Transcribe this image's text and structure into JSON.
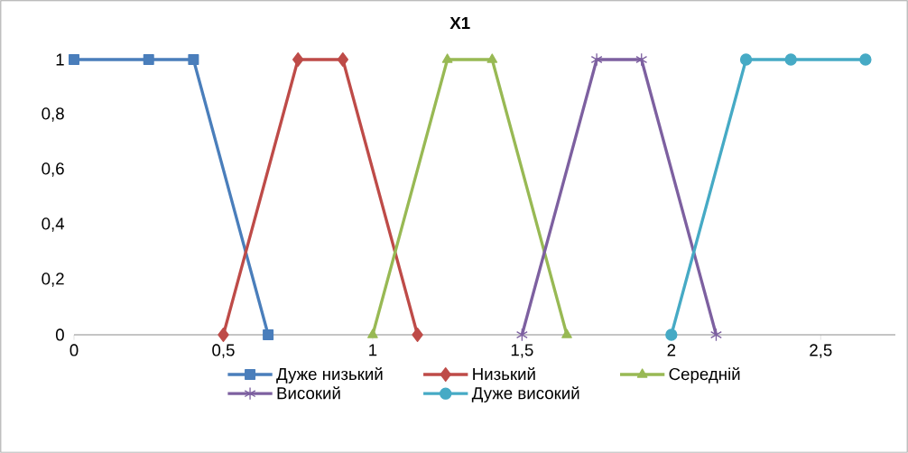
{
  "chart_data": {
    "type": "line",
    "title": "X1",
    "xlim": [
      0,
      2.75
    ],
    "ylim": [
      0,
      1
    ],
    "xticks": [
      0,
      {
        "value": 0.5,
        "label": "0,5"
      },
      1,
      {
        "value": 1.5,
        "label": "1,5"
      },
      2,
      {
        "value": 2.5,
        "label": "2,5"
      }
    ],
    "yticks": [
      0,
      {
        "value": 0.2,
        "label": "0,2"
      },
      {
        "value": 0.4,
        "label": "0,4"
      },
      {
        "value": 0.6,
        "label": "0,6"
      },
      {
        "value": 0.8,
        "label": "0,8"
      },
      1
    ],
    "grid": false,
    "legend": "bottom",
    "line_style": "solid",
    "series": [
      {
        "name": "Дуже низький",
        "color": "#4a7ebb",
        "marker": "square",
        "x": [
          0,
          0.25,
          0.4,
          0.65
        ],
        "values": [
          1,
          1,
          1,
          0
        ]
      },
      {
        "name": "Низький",
        "color": "#be4b48",
        "marker": "diamond",
        "x": [
          0.5,
          0.75,
          0.9,
          1.15
        ],
        "values": [
          0,
          1,
          1,
          0
        ]
      },
      {
        "name": "Середній",
        "color": "#98b954",
        "marker": "triangle",
        "x": [
          1.0,
          1.25,
          1.4,
          1.65
        ],
        "values": [
          0,
          1,
          1,
          0
        ]
      },
      {
        "name": "Високий",
        "color": "#7d60a0",
        "marker": "cross",
        "x": [
          1.5,
          1.75,
          1.9,
          2.15
        ],
        "values": [
          0,
          1,
          1,
          0
        ]
      },
      {
        "name": "Дуже високий",
        "color": "#46aac5",
        "marker": "circle",
        "x": [
          2.0,
          2.25,
          2.4,
          2.65
        ],
        "values": [
          0,
          1,
          1,
          1
        ]
      }
    ]
  }
}
